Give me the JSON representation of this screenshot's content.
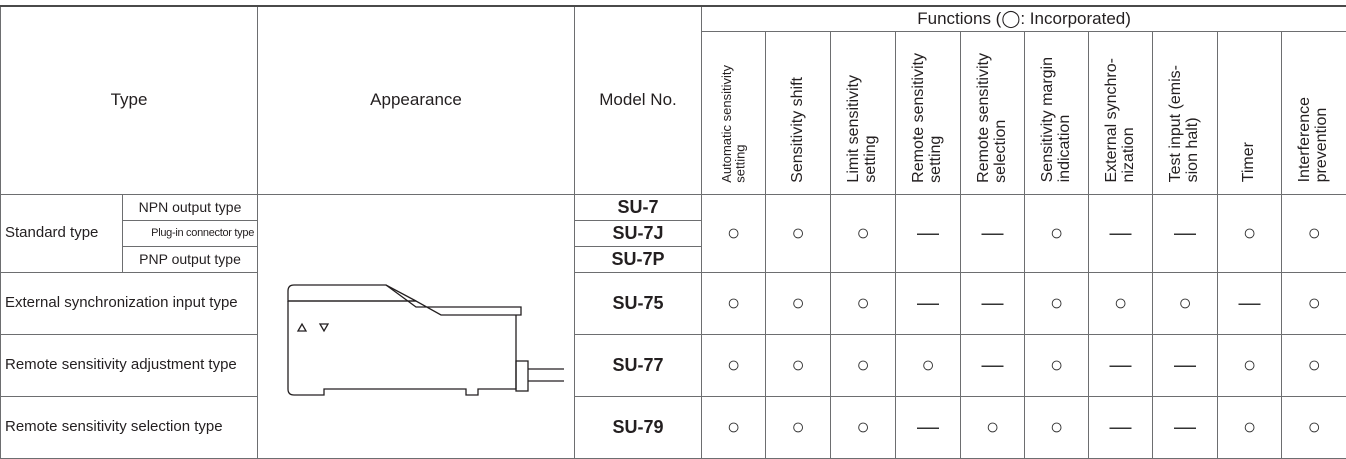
{
  "table": {
    "headers": {
      "type": "Type",
      "appearance": "Appearance",
      "model": "Model No.",
      "functions_group": "Functions (◯: Incorporated)",
      "functions": [
        "Automatic sensitivity\nsetting",
        "Sensitivity shift",
        "Limit sensitivity\nsetting",
        "Remote sensitivity\nsetting",
        "Remote sensitivity\nselection",
        "Sensitivity margin\nindication",
        "External synchro-\nnization",
        "Test input (emis-\nsion halt)",
        "Timer",
        "Interference\nprevention"
      ]
    },
    "rows": [
      {
        "type": "Standard type",
        "variants": [
          {
            "subtype": "NPN output type",
            "model": "SU-7"
          },
          {
            "subtype": "Plug-in connector type",
            "model": "SU-7J"
          },
          {
            "subtype": "PNP output type",
            "model": "SU-7P"
          }
        ],
        "functions": [
          "○",
          "○",
          "○",
          "—",
          "—",
          "○",
          "—",
          "—",
          "○",
          "○"
        ]
      },
      {
        "type": "External synchronization input type",
        "model": "SU-75",
        "functions": [
          "○",
          "○",
          "○",
          "—",
          "—",
          "○",
          "○",
          "○",
          "—",
          "○"
        ]
      },
      {
        "type": "Remote sensitivity adjustment type",
        "model": "SU-77",
        "functions": [
          "○",
          "○",
          "○",
          "○",
          "—",
          "○",
          "—",
          "—",
          "○",
          "○"
        ]
      },
      {
        "type": "Remote sensitivity selection type",
        "model": "SU-79",
        "functions": [
          "○",
          "○",
          "○",
          "—",
          "○",
          "○",
          "—",
          "—",
          "○",
          "○"
        ]
      }
    ]
  }
}
